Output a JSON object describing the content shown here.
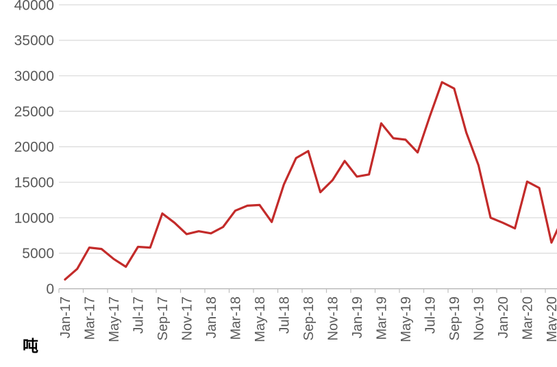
{
  "unit_label": "吨",
  "colors": {
    "line": "#c32b2a",
    "gridline": "#d9d9d9",
    "axis_line": "#b7b7b7",
    "tick": "#bfbfbf",
    "axis_text": "#595959",
    "background": "#ffffff",
    "unit_text": "#000000"
  },
  "chart_data": {
    "type": "line",
    "title": "",
    "xlabel": "",
    "ylabel": "吨",
    "grid": true,
    "legend": false,
    "ylim": [
      0,
      40000
    ],
    "y_ticks": [
      0,
      5000,
      10000,
      15000,
      20000,
      25000,
      30000,
      35000,
      40000
    ],
    "x_tick_labels": [
      "Jan-17",
      "Mar-17",
      "May-17",
      "Jul-17",
      "Sep-17",
      "Nov-17",
      "Jan-18",
      "Mar-18",
      "May-18",
      "Jul-18",
      "Sep-18",
      "Nov-18",
      "Jan-19",
      "Mar-19",
      "May-19",
      "Jul-19",
      "Sep-19",
      "Nov-19",
      "Jan-20",
      "Mar-20",
      "May-20"
    ],
    "categories": [
      "Jan-17",
      "Feb-17",
      "Mar-17",
      "Apr-17",
      "May-17",
      "Jun-17",
      "Jul-17",
      "Aug-17",
      "Sep-17",
      "Oct-17",
      "Nov-17",
      "Dec-17",
      "Jan-18",
      "Feb-18",
      "Mar-18",
      "Apr-18",
      "May-18",
      "Jun-18",
      "Jul-18",
      "Aug-18",
      "Sep-18",
      "Oct-18",
      "Nov-18",
      "Dec-18",
      "Jan-19",
      "Feb-19",
      "Mar-19",
      "Apr-19",
      "May-19",
      "Jun-19",
      "Jul-19",
      "Aug-19",
      "Sep-19",
      "Oct-19",
      "Nov-19",
      "Dec-19",
      "Jan-20",
      "Feb-20",
      "Mar-20",
      "Apr-20",
      "May-20"
    ],
    "values": [
      1300,
      2800,
      5800,
      5600,
      4200,
      3100,
      5900,
      5800,
      10600,
      9300,
      7700,
      8100,
      7800,
      8700,
      11000,
      11700,
      11800,
      9400,
      14700,
      18400,
      19400,
      13600,
      15300,
      18000,
      15800,
      16100,
      23300,
      21200,
      21000,
      19200,
      24300,
      29100,
      28200,
      22000,
      17400,
      10000,
      9300,
      8500,
      15100,
      14200,
      6500
    ],
    "clipped_next_point": {
      "label": "Jun-20",
      "value": 10200,
      "clipped_at_right_edge": true
    }
  }
}
